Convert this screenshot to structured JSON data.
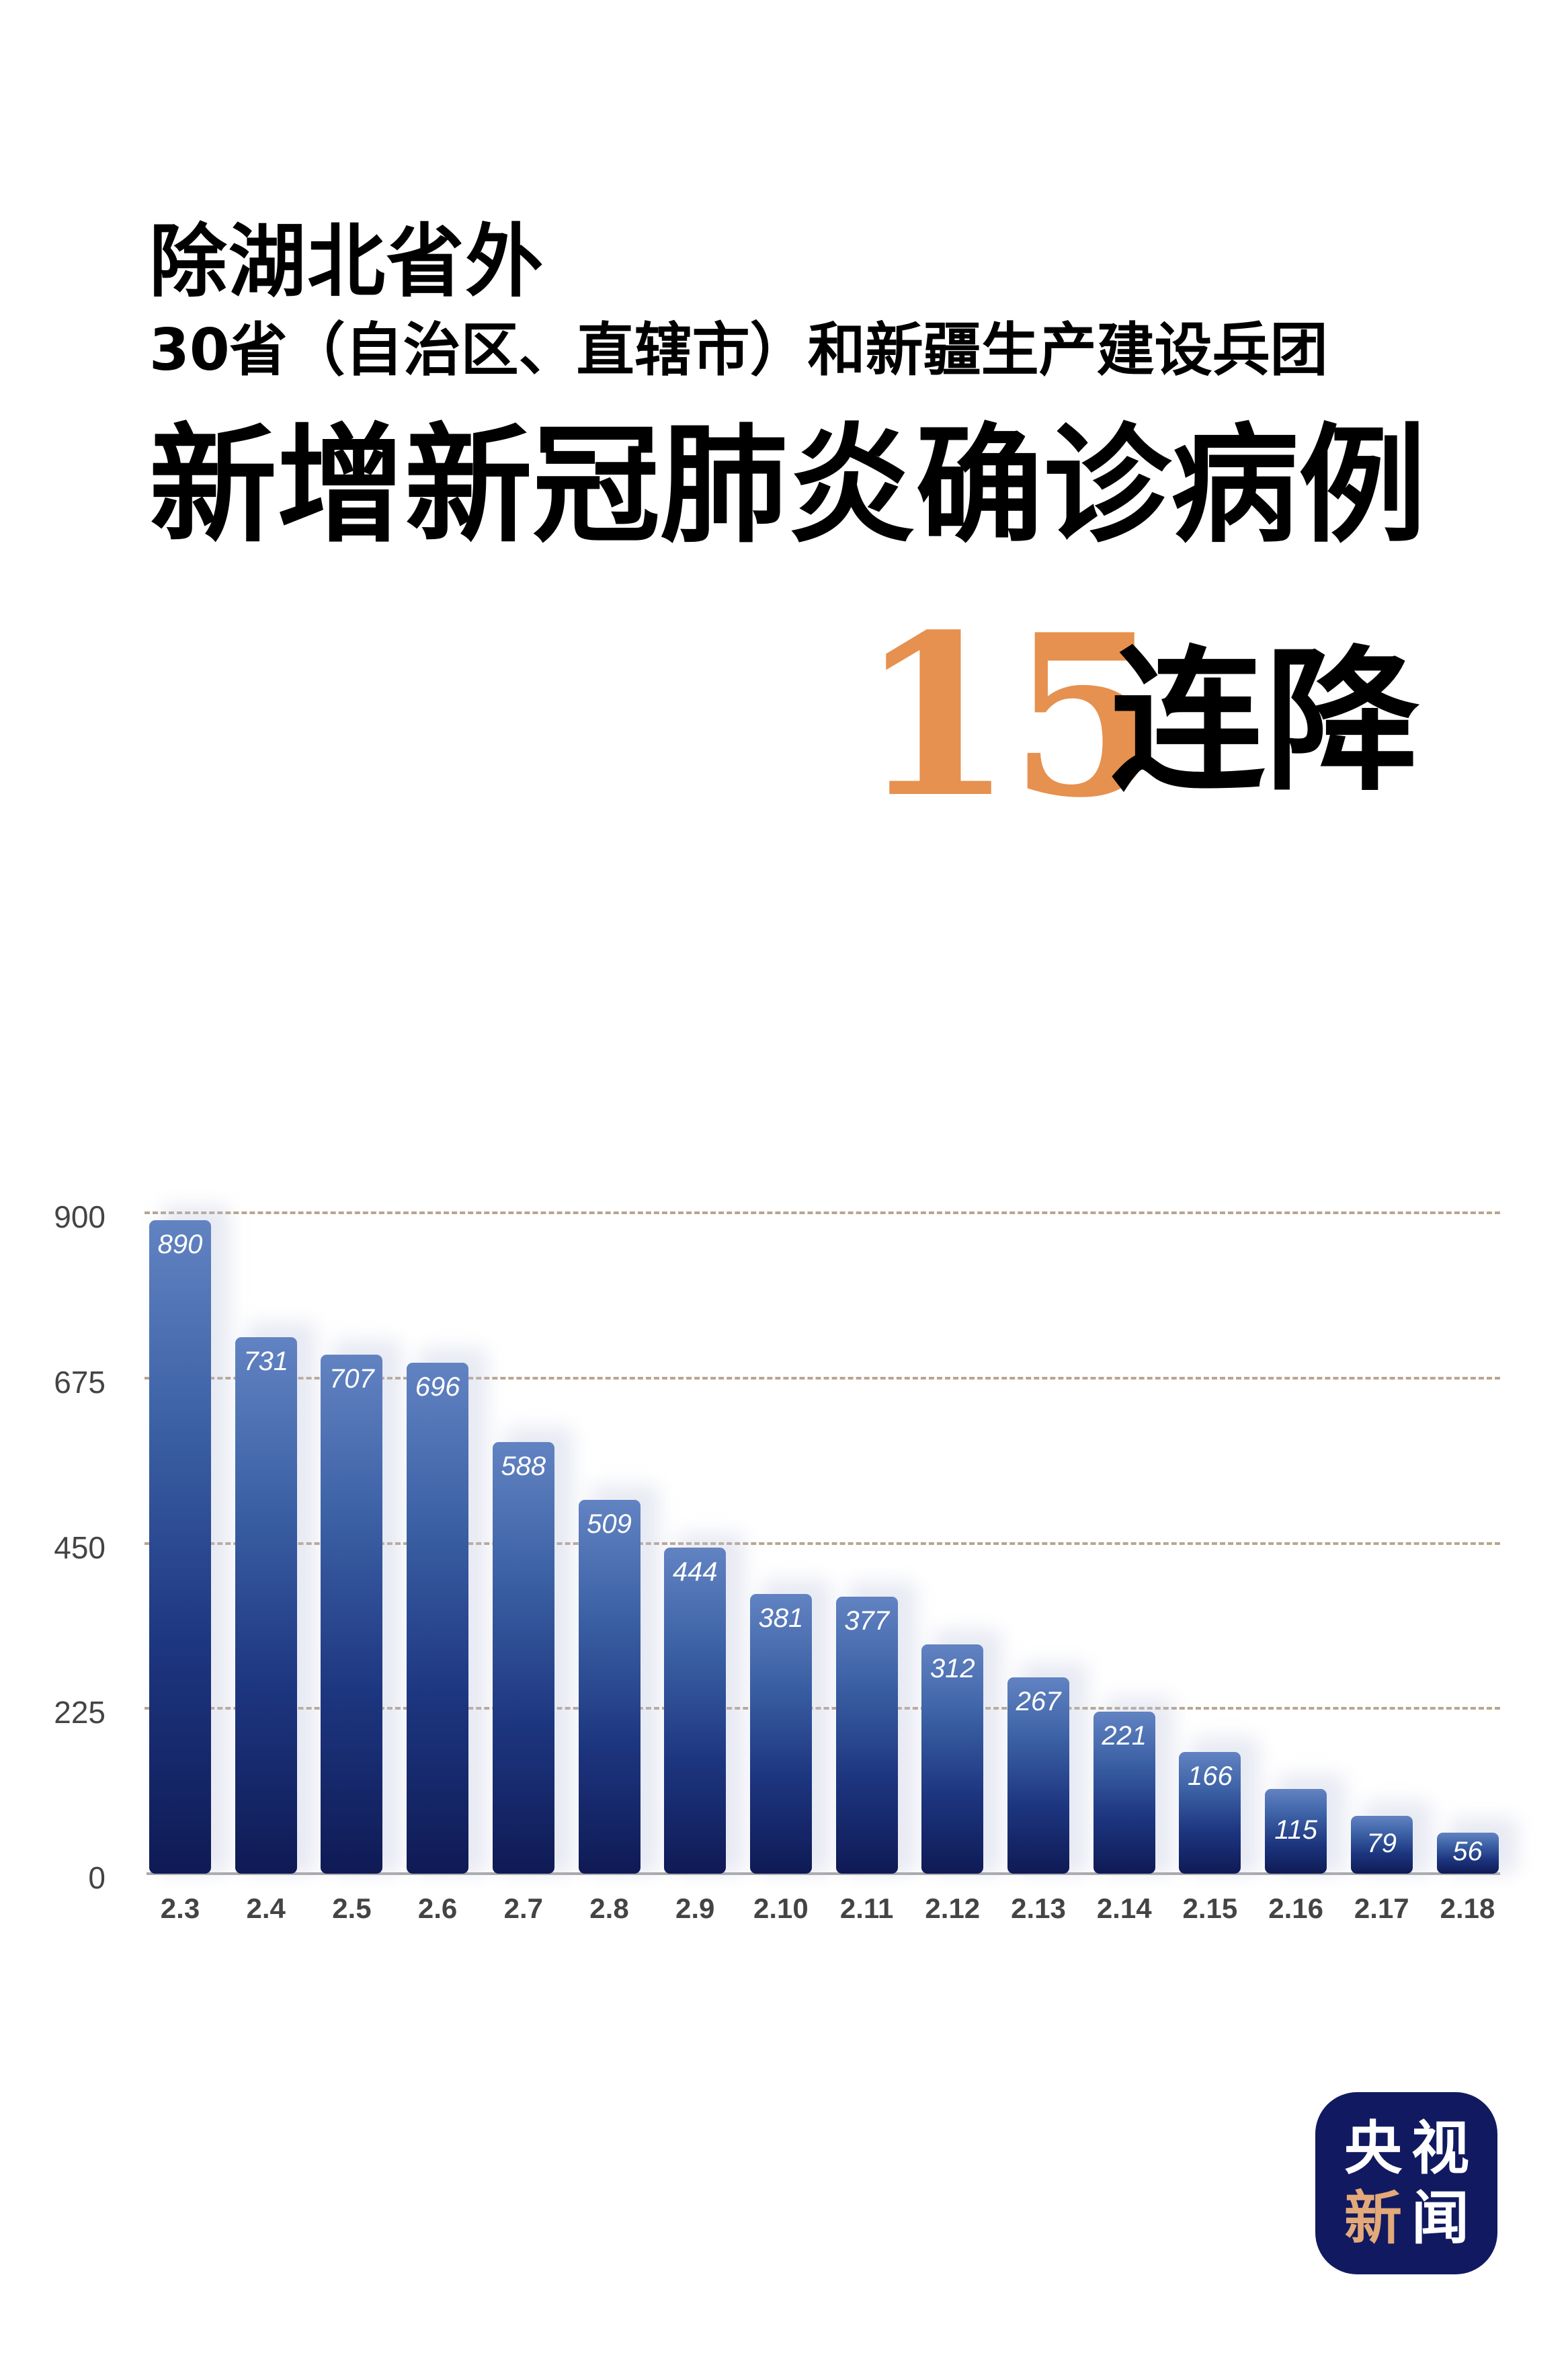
{
  "title": {
    "line1": "除湖北省外",
    "line2": "30省（自治区、直辖市）和新疆生产建设兵团",
    "line3": "新增新冠肺炎确诊病例",
    "highlight_number": "15",
    "highlight_suffix": "连降"
  },
  "colors": {
    "highlight": "#E6914F",
    "bar_top": "#6283C2",
    "bar_bottom": "#0F1A55",
    "gridline": "#B8A58E",
    "axis_text": "#444444",
    "logo_bg": "#111A60",
    "logo_accent": "#E3A979"
  },
  "chart_data": {
    "type": "bar",
    "title": "除湖北省外30省（自治区、直辖市）和新疆生产建设兵团新增新冠肺炎确诊病例15连降",
    "xlabel": "",
    "ylabel": "",
    "categories": [
      "2.3",
      "2.4",
      "2.5",
      "2.6",
      "2.7",
      "2.8",
      "2.9",
      "2.10",
      "2.11",
      "2.12",
      "2.13",
      "2.14",
      "2.15",
      "2.16",
      "2.17",
      "2.18"
    ],
    "values": [
      890,
      731,
      707,
      696,
      588,
      509,
      444,
      381,
      377,
      312,
      267,
      221,
      166,
      115,
      79,
      56
    ],
    "yticks": [
      "0",
      "225",
      "450",
      "675",
      "900"
    ],
    "ylim": [
      0,
      900
    ],
    "grid": true,
    "legend": null,
    "data_labels": true
  },
  "logo": {
    "chars": [
      "央",
      "视",
      "新",
      "闻"
    ]
  }
}
